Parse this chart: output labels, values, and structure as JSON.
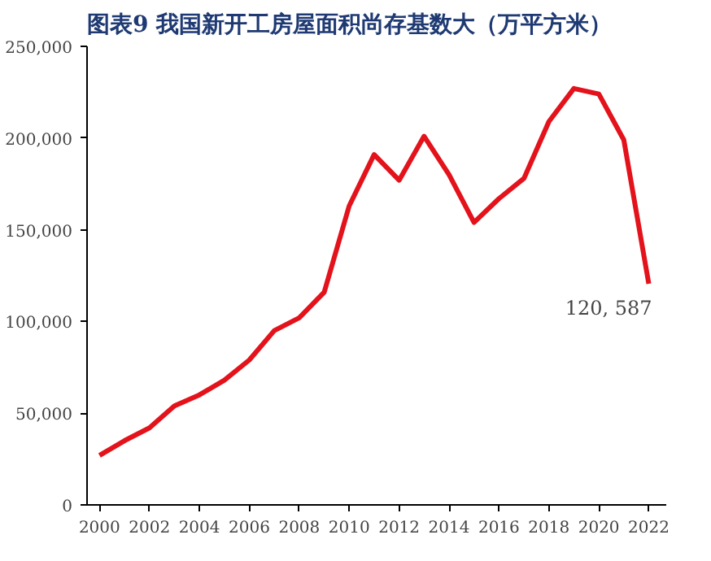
{
  "chart_data": {
    "type": "line",
    "title": "图表9 我国新开工房屋面积尚存基数大（万平方米）",
    "x": [
      2000,
      2001,
      2002,
      2003,
      2004,
      2005,
      2006,
      2007,
      2008,
      2009,
      2010,
      2011,
      2012,
      2013,
      2014,
      2015,
      2016,
      2017,
      2018,
      2019,
      2020,
      2021,
      2022
    ],
    "series": [
      {
        "color": "#e3121b",
        "values": [
          27000,
          35000,
          42000,
          54000,
          60000,
          68000,
          79000,
          95000,
          102000,
          116000,
          163000,
          191000,
          177000,
          201000,
          180000,
          154000,
          167000,
          178000,
          209000,
          227000,
          224000,
          199000,
          120587
        ]
      }
    ],
    "xlim": [
      1999.5,
      2022.7
    ],
    "xticks": [
      2000,
      2002,
      2004,
      2006,
      2008,
      2010,
      2012,
      2014,
      2016,
      2018,
      2020,
      2022
    ],
    "ylim": [
      0,
      250000
    ],
    "yticks": [
      {
        "value": 0,
        "label": "0"
      },
      {
        "value": 50000,
        "label": "50,000"
      },
      {
        "value": 100000,
        "label": "100,000"
      },
      {
        "value": 150000,
        "label": "150,000"
      },
      {
        "value": 200000,
        "label": "200,000"
      },
      {
        "value": 250000,
        "label": "250,000"
      }
    ],
    "annotations": [
      {
        "text": "120, 587",
        "x": 2022,
        "y": 120587
      }
    ],
    "marker": "none",
    "line_style": "solid"
  }
}
